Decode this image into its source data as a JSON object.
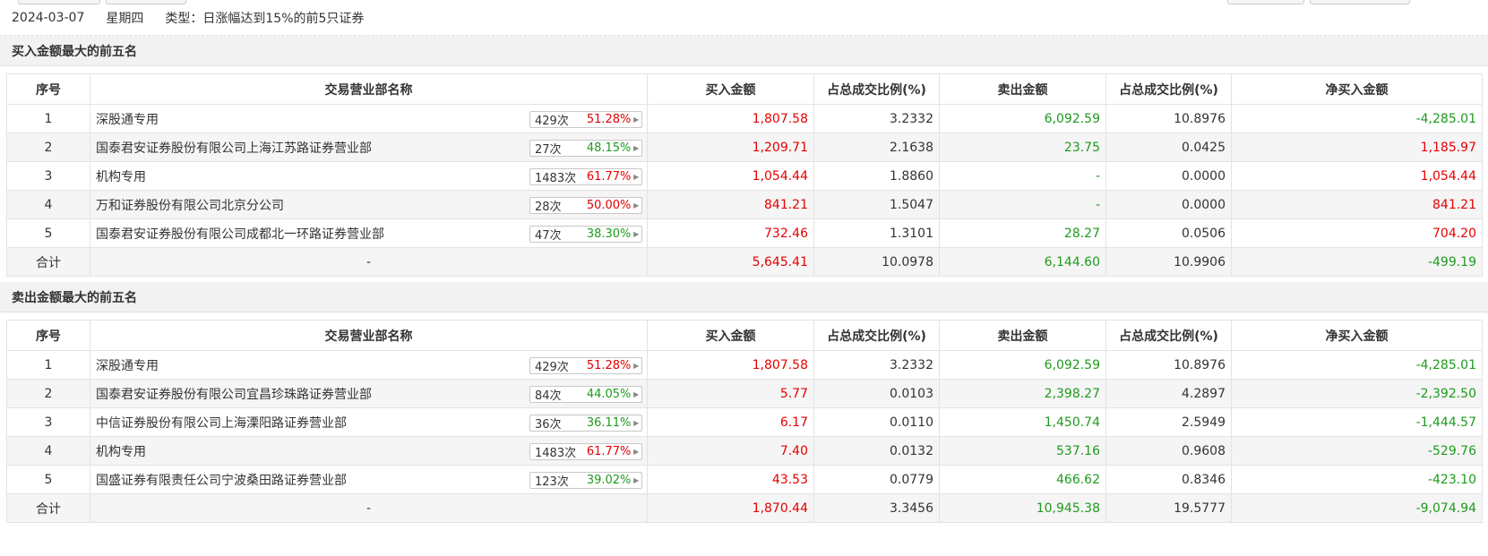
{
  "info": {
    "date": "2024-03-07",
    "weekday": "星期四",
    "type_text": "类型：日涨幅达到15%的前5只证券"
  },
  "columns": {
    "seq": "序号",
    "dept": "交易营业部名称",
    "buy": "买入金额",
    "buy_ratio": "占总成交比例(%)",
    "sell": "卖出金额",
    "sell_ratio": "占总成交比例(%)",
    "net": "净买入金额"
  },
  "buy_section": {
    "title": "买入金额最大的前五名",
    "rows": [
      {
        "seq": "1",
        "name": "深股通专用",
        "count": "429次",
        "pct": "51.28%",
        "buy": "1,807.58",
        "buy_ratio": "3.2332",
        "sell": "6,092.59",
        "sell_ratio": "10.8976",
        "net": "-4,285.01"
      },
      {
        "seq": "2",
        "name": "国泰君安证券股份有限公司上海江苏路证券营业部",
        "count": "27次",
        "pct": "48.15%",
        "buy": "1,209.71",
        "buy_ratio": "2.1638",
        "sell": "23.75",
        "sell_ratio": "0.0425",
        "net": "1,185.97"
      },
      {
        "seq": "3",
        "name": "机构专用",
        "count": "1483次",
        "pct": "61.77%",
        "buy": "1,054.44",
        "buy_ratio": "1.8860",
        "sell": "-",
        "sell_ratio": "0.0000",
        "net": "1,054.44"
      },
      {
        "seq": "4",
        "name": "万和证券股份有限公司北京分公司",
        "count": "28次",
        "pct": "50.00%",
        "buy": "841.21",
        "buy_ratio": "1.5047",
        "sell": "-",
        "sell_ratio": "0.0000",
        "net": "841.21"
      },
      {
        "seq": "5",
        "name": "国泰君安证券股份有限公司成都北一环路证券营业部",
        "count": "47次",
        "pct": "38.30%",
        "buy": "732.46",
        "buy_ratio": "1.3101",
        "sell": "28.27",
        "sell_ratio": "0.0506",
        "net": "704.20"
      }
    ],
    "total": {
      "label": "合计",
      "name": "-",
      "buy": "5,645.41",
      "buy_ratio": "10.0978",
      "sell": "6,144.60",
      "sell_ratio": "10.9906",
      "net": "-499.19"
    }
  },
  "sell_section": {
    "title": "卖出金额最大的前五名",
    "rows": [
      {
        "seq": "1",
        "name": "深股通专用",
        "count": "429次",
        "pct": "51.28%",
        "buy": "1,807.58",
        "buy_ratio": "3.2332",
        "sell": "6,092.59",
        "sell_ratio": "10.8976",
        "net": "-4,285.01"
      },
      {
        "seq": "2",
        "name": "国泰君安证券股份有限公司宜昌珍珠路证券营业部",
        "count": "84次",
        "pct": "44.05%",
        "buy": "5.77",
        "buy_ratio": "0.0103",
        "sell": "2,398.27",
        "sell_ratio": "4.2897",
        "net": "-2,392.50"
      },
      {
        "seq": "3",
        "name": "中信证券股份有限公司上海溧阳路证券营业部",
        "count": "36次",
        "pct": "36.11%",
        "buy": "6.17",
        "buy_ratio": "0.0110",
        "sell": "1,450.74",
        "sell_ratio": "2.5949",
        "net": "-1,444.57"
      },
      {
        "seq": "4",
        "name": "机构专用",
        "count": "1483次",
        "pct": "61.77%",
        "buy": "7.40",
        "buy_ratio": "0.0132",
        "sell": "537.16",
        "sell_ratio": "0.9608",
        "net": "-529.76"
      },
      {
        "seq": "5",
        "name": "国盛证券有限责任公司宁波桑田路证券营业部",
        "count": "123次",
        "pct": "39.02%",
        "buy": "43.53",
        "buy_ratio": "0.0779",
        "sell": "466.62",
        "sell_ratio": "0.8346",
        "net": "-423.10"
      }
    ],
    "total": {
      "label": "合计",
      "name": "-",
      "buy": "1,870.44",
      "buy_ratio": "3.3456",
      "sell": "10,945.38",
      "sell_ratio": "19.5777",
      "net": "-9,074.94"
    }
  },
  "colors": {
    "positive": "#e60000",
    "negative": "#1d9b1d"
  },
  "icons": {
    "badge_arrow": "triangle-right-icon"
  }
}
